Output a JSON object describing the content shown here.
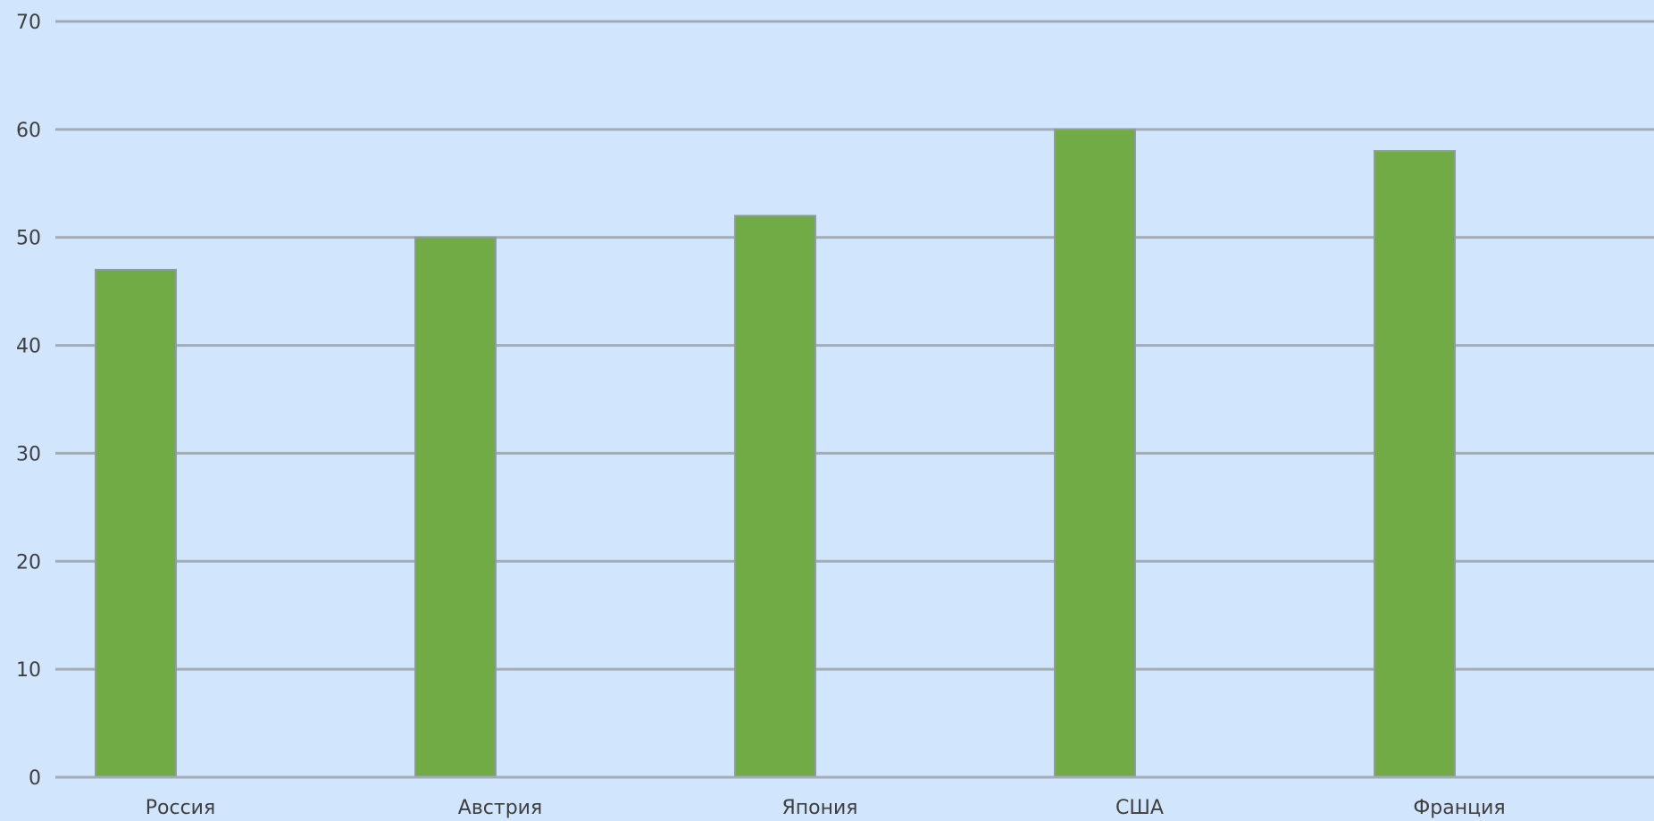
{
  "chart_data": {
    "type": "bar",
    "categories": [
      "Россия",
      "Австрия",
      "Япония",
      "США",
      "Франция"
    ],
    "values": [
      47,
      50,
      52,
      60,
      58
    ],
    "yticks": [
      "0",
      "10",
      "20",
      "30",
      "40",
      "50",
      "60",
      "70"
    ],
    "ylim": [
      0,
      70
    ],
    "grid": true,
    "legend": "none",
    "colors": {
      "bar_fill": "#70ab45",
      "bar_stroke": "#8f9aa3",
      "grid": "#a3acb5",
      "background": "#d1e6fd",
      "text": "#3f3f3f"
    }
  }
}
